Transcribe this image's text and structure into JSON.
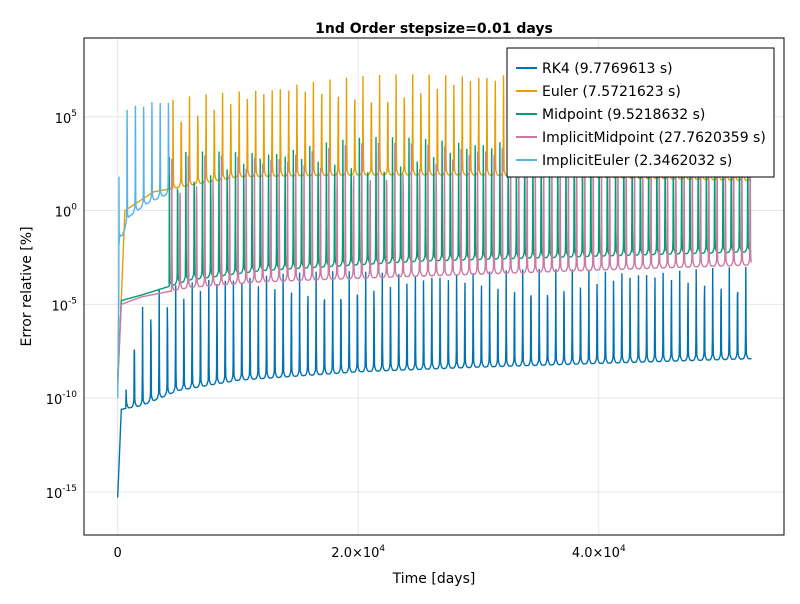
{
  "chart_data": {
    "type": "line",
    "title": "1nd Order stepsize=0.01 days",
    "xlabel": "Time [days]",
    "ylabel": "Error relative [%]",
    "xlim": [
      -2800,
      55400
    ],
    "ylim_log10": [
      -17.3,
      9.2
    ],
    "y_scale": "log10",
    "x_ticks": [
      {
        "value": 0,
        "label": "0",
        "base": "0",
        "exp": ""
      },
      {
        "value": 20000,
        "label": "2.0×10^4",
        "base": "2.0×10",
        "exp": "4"
      },
      {
        "value": 40000,
        "label": "4.0×10^4",
        "base": "4.0×10",
        "exp": "4"
      }
    ],
    "y_ticks": [
      {
        "log10": 5,
        "base": "10",
        "exp": "5"
      },
      {
        "log10": 0,
        "base": "10",
        "exp": "0"
      },
      {
        "log10": -5,
        "base": "10",
        "exp": "-5"
      },
      {
        "log10": -10,
        "base": "10",
        "exp": "-10"
      },
      {
        "log10": -15,
        "base": "10",
        "exp": "-15"
      }
    ],
    "grid": true,
    "legend_position": "top-right",
    "x_end": 52700,
    "oscillation_period_days": 687,
    "series": [
      {
        "name": "RK4 (9.7769613 s)",
        "color": "#0072b2",
        "x_end": 52700,
        "baseline_log10": [
          [
            0,
            -15.3
          ],
          [
            300,
            -10.6
          ],
          [
            2000,
            -10.4
          ],
          [
            5000,
            -9.6
          ],
          [
            10000,
            -9.05
          ],
          [
            20000,
            -8.6
          ],
          [
            30000,
            -8.35
          ],
          [
            52700,
            -7.9
          ]
        ],
        "peak_log10": [
          [
            0,
            -15.3
          ],
          [
            500,
            -10.8
          ],
          [
            1500,
            -6.0
          ],
          [
            3000,
            -4.5
          ],
          [
            8000,
            -3.6
          ],
          [
            52700,
            -3.3
          ]
        ],
        "first_peak_x": 700
      },
      {
        "name": "Euler (7.5721623 s)",
        "color": "#e69f00",
        "x_end": 52700,
        "baseline_log10": [
          [
            0,
            -9.5
          ],
          [
            600,
            0.0
          ],
          [
            3000,
            1.0
          ],
          [
            10000,
            1.8
          ],
          [
            20000,
            1.9
          ],
          [
            30000,
            1.9
          ],
          [
            52700,
            1.6
          ]
        ],
        "peak_log10": [
          [
            1000,
            4.8
          ],
          [
            5000,
            5.7
          ],
          [
            15000,
            6.7
          ],
          [
            30000,
            7.2
          ],
          [
            52700,
            7.3
          ]
        ],
        "first_peak_x": 4600
      },
      {
        "name": "Midpoint (9.5218632 s)",
        "color": "#009e73",
        "x_end": 52700,
        "baseline_log10": [
          [
            0,
            -9.0
          ],
          [
            300,
            -4.8
          ],
          [
            2000,
            -4.5
          ],
          [
            6000,
            -3.7
          ],
          [
            12000,
            -3.2
          ],
          [
            25000,
            -2.7
          ],
          [
            52700,
            -2.2
          ]
        ],
        "peak_log10": [
          [
            1000,
            1.5
          ],
          [
            5000,
            2.8
          ],
          [
            20000,
            3.6
          ],
          [
            52700,
            3.9
          ]
        ],
        "first_peak_x": 4300
      },
      {
        "name": "ImplicitMidpoint (27.7620359 s)",
        "color": "#cc79a7",
        "x_end": 52700,
        "baseline_log10": [
          [
            0,
            -9.0
          ],
          [
            300,
            -5.0
          ],
          [
            2000,
            -4.6
          ],
          [
            6000,
            -4.1
          ],
          [
            12000,
            -3.8
          ],
          [
            25000,
            -3.5
          ],
          [
            52700,
            -2.9
          ]
        ],
        "peak_log10": [
          [
            1000,
            1.5
          ],
          [
            5000,
            2.6
          ],
          [
            20000,
            3.3
          ],
          [
            52700,
            3.6
          ]
        ],
        "first_peak_x": 4500
      },
      {
        "name": "ImplicitEuler (2.3462032 s)",
        "color": "#56b4e9",
        "x_end": 4250,
        "baseline_log10": [
          [
            0,
            -10.0
          ],
          [
            150,
            -1.5
          ],
          [
            400,
            -1.3
          ],
          [
            1000,
            -0.3
          ],
          [
            2500,
            0.4
          ],
          [
            4250,
            0.9
          ]
        ],
        "peak_log10": [
          [
            100,
            2.0
          ],
          [
            600,
            5.0
          ],
          [
            1500,
            5.4
          ],
          [
            4250,
            5.6
          ]
        ],
        "first_peak_x": 100
      }
    ]
  }
}
